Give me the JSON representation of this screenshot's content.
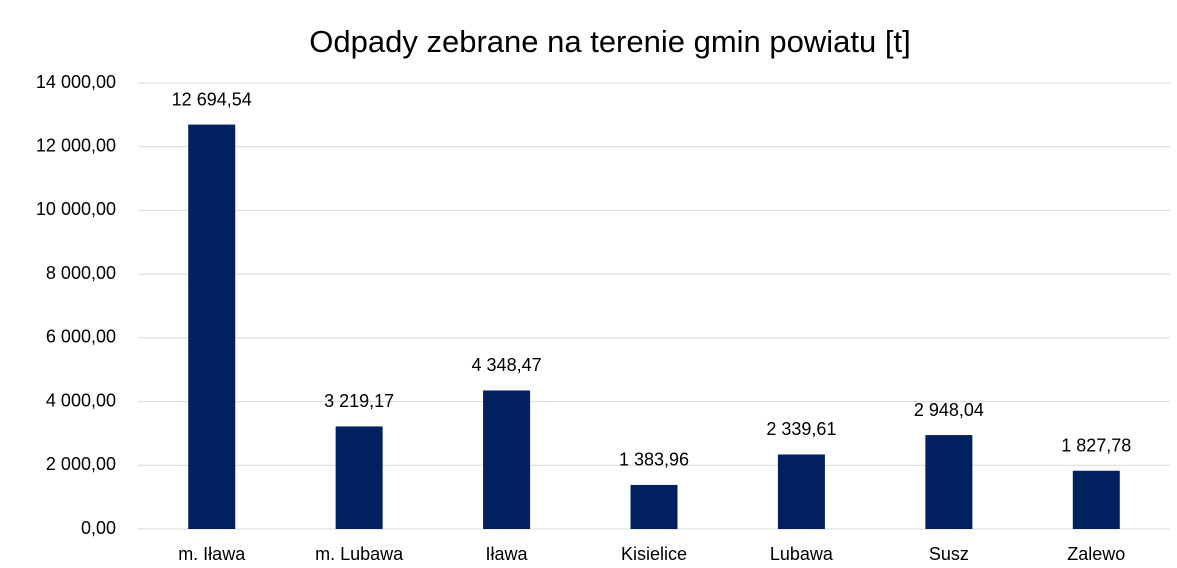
{
  "chart_data": {
    "type": "bar",
    "title": "Odpady zebrane na terenie gmin powiatu [t]",
    "categories": [
      "m. Iława",
      "m. Lubawa",
      "Iława",
      "Kisielice",
      "Lubawa",
      "Susz",
      "Zalewo"
    ],
    "values": [
      12694.54,
      3219.17,
      4348.47,
      1383.96,
      2339.61,
      2948.04,
      1827.78
    ],
    "value_labels": [
      "12 694,54",
      "3 219,17",
      "4 348,47",
      "1 383,96",
      "2 339,61",
      "2 948,04",
      "1 827,78"
    ],
    "color": "#002060",
    "ylim": [
      0,
      14000
    ],
    "yticks": [
      {
        "value": 0,
        "label": "0,00"
      },
      {
        "value": 2000,
        "label": "2 000,00"
      },
      {
        "value": 4000,
        "label": "4 000,00"
      },
      {
        "value": 6000,
        "label": "6 000,00"
      },
      {
        "value": 8000,
        "label": "8 000,00"
      },
      {
        "value": 10000,
        "label": "10 000,00"
      },
      {
        "value": 12000,
        "label": "12 000,00"
      },
      {
        "value": 14000,
        "label": "14 000,00"
      }
    ],
    "grid": true
  }
}
